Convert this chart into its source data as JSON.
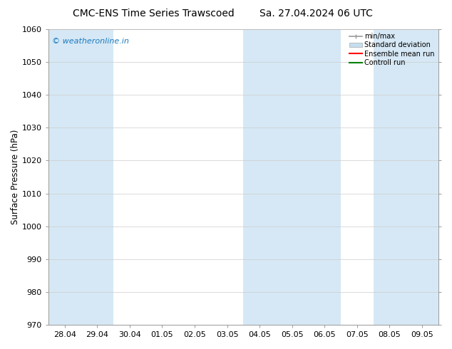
{
  "title_left": "CMC-ENS Time Series Trawscoed",
  "title_right": "Sa. 27.04.2024 06 UTC",
  "ylabel": "Surface Pressure (hPa)",
  "ylim": [
    970,
    1060
  ],
  "yticks": [
    970,
    980,
    990,
    1000,
    1010,
    1020,
    1030,
    1040,
    1050,
    1060
  ],
  "xtick_labels": [
    "28.04",
    "29.04",
    "30.04",
    "01.05",
    "02.05",
    "03.05",
    "04.05",
    "05.05",
    "06.05",
    "07.05",
    "08.05",
    "09.05"
  ],
  "watermark": "© weatheronline.in",
  "watermark_color": "#1a7abf",
  "background_color": "#ffffff",
  "plot_bg_color": "#ffffff",
  "shaded_band_color": "#d6e8f5",
  "legend_entries": [
    "min/max",
    "Standard deviation",
    "Ensemble mean run",
    "Controll run"
  ],
  "legend_line_colors": [
    "#999999",
    "#c5dff0",
    "#ff0000",
    "#008000"
  ],
  "shaded_indices": [
    0,
    1,
    6,
    7,
    8,
    10,
    11
  ],
  "grid_color": "#cccccc",
  "spine_color": "#999999",
  "title_fontsize": 10,
  "tick_fontsize": 8,
  "ylabel_fontsize": 8.5,
  "watermark_fontsize": 8
}
